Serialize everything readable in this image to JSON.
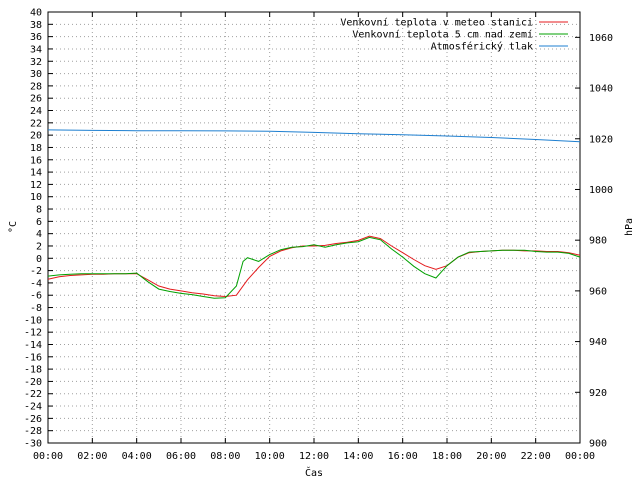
{
  "chart_data": {
    "type": "line",
    "title": "",
    "xlabel": "Čas",
    "ylabel_left": "°C",
    "ylabel_right": "hPa",
    "x_ticks": [
      "00:00",
      "02:00",
      "04:00",
      "06:00",
      "08:00",
      "10:00",
      "12:00",
      "14:00",
      "16:00",
      "18:00",
      "20:00",
      "22:00",
      "00:00"
    ],
    "xlim_hours": [
      0,
      24
    ],
    "ylim_left": [
      -30,
      40
    ],
    "y_left_ticks": [
      40,
      38,
      36,
      34,
      32,
      30,
      28,
      26,
      24,
      22,
      20,
      18,
      16,
      14,
      12,
      10,
      8,
      6,
      4,
      2,
      0,
      -2,
      -4,
      -6,
      -8,
      -10,
      -12,
      -14,
      -16,
      -18,
      -20,
      -22,
      -24,
      -26,
      -28,
      -30
    ],
    "ylim_right": [
      900,
      1070
    ],
    "y_right_ticks": [
      1060,
      1040,
      1020,
      1000,
      980,
      960,
      940,
      920,
      900
    ],
    "grid": true,
    "legend_position": "top-right",
    "series": [
      {
        "name": "Venkovní teplota v meteo stanici",
        "axis": "left",
        "color": "#e41a1c",
        "x": [
          0,
          0.5,
          1,
          1.5,
          2,
          2.5,
          3,
          3.5,
          4,
          4.5,
          5,
          5.5,
          6,
          6.5,
          7,
          7.5,
          8,
          8.5,
          9,
          9.5,
          10,
          10.5,
          11,
          11.5,
          12,
          12.5,
          13,
          13.5,
          14,
          14.5,
          15,
          15.5,
          16,
          16.5,
          17,
          17.5,
          18,
          18.5,
          19,
          19.5,
          20,
          20.5,
          21,
          21.5,
          22,
          22.5,
          23,
          23.5,
          24
        ],
        "y": [
          -3.4,
          -3.0,
          -2.8,
          -2.7,
          -2.6,
          -2.6,
          -2.5,
          -2.5,
          -2.5,
          -3.5,
          -4.5,
          -5.0,
          -5.3,
          -5.6,
          -5.8,
          -6.1,
          -6.2,
          -6.0,
          -3.5,
          -1.5,
          0.3,
          1.2,
          1.7,
          2.0,
          2.0,
          2.1,
          2.4,
          2.6,
          2.9,
          3.6,
          3.2,
          2.0,
          0.9,
          -0.2,
          -1.2,
          -1.8,
          -1.2,
          0.2,
          0.9,
          1.1,
          1.2,
          1.3,
          1.3,
          1.2,
          1.2,
          1.1,
          1.1,
          0.9,
          0.5
        ]
      },
      {
        "name": "Venkovní teplota 5 cm nad zemí",
        "axis": "left",
        "color": "#00a000",
        "x": [
          0,
          0.5,
          1,
          1.5,
          2,
          2.5,
          3,
          3.5,
          4,
          4.5,
          5,
          5.5,
          6,
          6.5,
          7,
          7.5,
          8,
          8.5,
          8.8,
          9,
          9.5,
          10,
          10.5,
          11,
          11.5,
          12,
          12.5,
          13,
          13.5,
          14,
          14.5,
          15,
          15.5,
          16,
          16.5,
          17,
          17.5,
          18,
          18.5,
          19,
          19.5,
          20,
          20.5,
          21,
          21.5,
          22,
          22.5,
          23,
          23.5,
          24
        ],
        "y": [
          -2.9,
          -2.7,
          -2.6,
          -2.5,
          -2.5,
          -2.5,
          -2.5,
          -2.5,
          -2.4,
          -3.8,
          -5.0,
          -5.4,
          -5.7,
          -5.9,
          -6.2,
          -6.5,
          -6.4,
          -4.5,
          -0.5,
          0.1,
          -0.5,
          0.6,
          1.4,
          1.8,
          1.9,
          2.2,
          1.8,
          2.2,
          2.5,
          2.7,
          3.4,
          3.0,
          1.5,
          0.2,
          -1.3,
          -2.5,
          -3.2,
          -1.2,
          0.2,
          1.0,
          1.1,
          1.2,
          1.3,
          1.3,
          1.3,
          1.1,
          1.0,
          1.0,
          0.8,
          0.2
        ]
      },
      {
        "name": "Atmosférický tlak",
        "axis": "right",
        "color": "#1e7fd0",
        "x": [
          0,
          2,
          4,
          6,
          8,
          10,
          12,
          14,
          16,
          18,
          20,
          22,
          24
        ],
        "y": [
          1023.5,
          1023.3,
          1023.2,
          1023.2,
          1023.1,
          1023.0,
          1022.5,
          1022.0,
          1021.6,
          1021.1,
          1020.5,
          1019.7,
          1018.8
        ]
      }
    ]
  }
}
